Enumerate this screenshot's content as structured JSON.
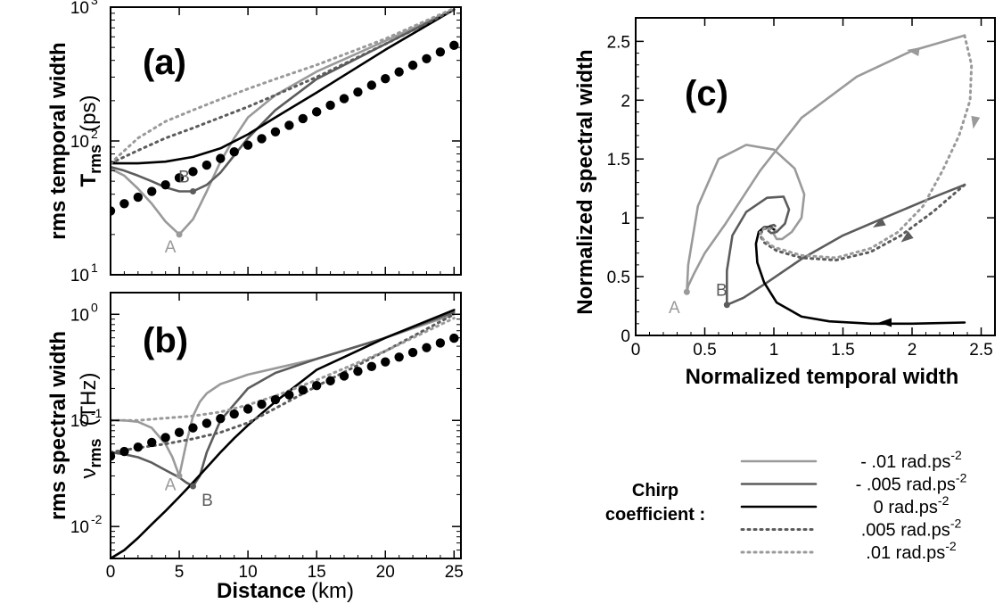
{
  "figure": {
    "panels": [
      {
        "id": "a",
        "label": "(a)",
        "ylabel_main": "rms temporal width",
        "ylabel_sym": "T",
        "ylabel_sub": "rms",
        "ylabel_unit": "(ps)",
        "y_ticks": [
          {
            "base": "10",
            "exp": "1"
          },
          {
            "base": "10",
            "exp": "2"
          },
          {
            "base": "10",
            "exp": "3"
          }
        ],
        "x_ticks": [
          "0",
          "5",
          "10",
          "15",
          "20",
          "25"
        ],
        "markers": [
          {
            "name": "A",
            "x": 5,
            "y": 20
          },
          {
            "name": "B",
            "x": 6,
            "y": 42
          }
        ]
      },
      {
        "id": "b",
        "label": "(b)",
        "ylabel_main": "rms spectral width",
        "ylabel_sym": "ν",
        "ylabel_sub": "rms",
        "ylabel_unit": "(THz)",
        "y_ticks": [
          {
            "base": "10",
            "exp": "-2"
          },
          {
            "base": "10",
            "exp": "-1"
          },
          {
            "base": "10",
            "exp": "0"
          }
        ],
        "x_ticks": [
          "0",
          "5",
          "10",
          "15",
          "20",
          "25"
        ],
        "xlabel_bold": "Distance",
        "xlabel_unit": "(km)",
        "markers": [
          {
            "name": "A",
            "x": 5,
            "y": 0.03
          },
          {
            "name": "B",
            "x": 6,
            "y": 0.024
          }
        ]
      },
      {
        "id": "c",
        "label": "(c)",
        "xlabel": "Normalized temporal width",
        "ylabel": "Normalized spectral width",
        "x_ticks": [
          "0",
          "0.5",
          "1",
          "1.5",
          "2",
          "2.5"
        ],
        "y_ticks": [
          "0",
          "0.5",
          "1",
          "1.5",
          "2",
          "2.5"
        ],
        "markers": [
          {
            "name": "A",
            "x": 0.37,
            "y": 0.37
          },
          {
            "name": "B",
            "x": 0.66,
            "y": 0.26
          }
        ]
      }
    ]
  },
  "legend": {
    "title_line1": "Chirp",
    "title_line2": "coefficient :",
    "entries": [
      {
        "text": "- .01 rad.ps",
        "sup": "-2",
        "color": "#9a9a9a",
        "dash": "solid"
      },
      {
        "text": "- .005 rad.ps",
        "sup": "-2",
        "color": "#5c5c5c",
        "dash": "solid"
      },
      {
        "text": "0 rad.ps",
        "sup": "-2",
        "color": "#000000",
        "dash": "solid"
      },
      {
        "text": ".005 rad.ps",
        "sup": "-2",
        "color": "#5c5c5c",
        "dash": "dotted"
      },
      {
        "text": ".01 rad.ps",
        "sup": "-2",
        "color": "#9a9a9a",
        "dash": "dotted"
      }
    ]
  },
  "chart_data": [
    {
      "type": "line",
      "title": "(a)",
      "xlabel": "",
      "ylabel": "rms temporal width T_rms (ps)",
      "xlim": [
        0,
        25.5
      ],
      "ylim": [
        10,
        1000
      ],
      "y_scale": "log",
      "series": [
        {
          "color": "#9a9a9a",
          "dash": "solid",
          "x": [
            0,
            1,
            2,
            3,
            4,
            5,
            6,
            7,
            8,
            9,
            10,
            12,
            15,
            20,
            25
          ],
          "y": [
            62,
            55,
            44,
            34,
            25,
            20,
            26,
            42,
            70,
            105,
            150,
            220,
            330,
            560,
            960
          ]
        },
        {
          "color": "#5c5c5c",
          "dash": "solid",
          "x": [
            0,
            1,
            2,
            3,
            4,
            5,
            6,
            7,
            8,
            9,
            10,
            12,
            15,
            20,
            25
          ],
          "y": [
            64,
            60,
            55,
            50,
            45,
            42,
            42,
            47,
            58,
            78,
            105,
            170,
            290,
            530,
            960
          ]
        },
        {
          "color": "#000000",
          "dash": "solid",
          "x": [
            0,
            2,
            4,
            6,
            8,
            10,
            12,
            15,
            20,
            25
          ],
          "y": [
            68,
            68,
            70,
            76,
            88,
            112,
            150,
            230,
            480,
            960
          ]
        },
        {
          "color": "#5c5c5c",
          "dash": "dotted",
          "x": [
            0,
            2,
            4,
            6,
            8,
            10,
            12,
            15,
            20,
            25
          ],
          "y": [
            68,
            85,
            105,
            125,
            150,
            180,
            220,
            300,
            530,
            960
          ]
        },
        {
          "color": "#9a9a9a",
          "dash": "dotted",
          "x": [
            0,
            2,
            4,
            6,
            8,
            10,
            12,
            15,
            20,
            25
          ],
          "y": [
            68,
            105,
            140,
            170,
            205,
            245,
            290,
            370,
            580,
            980
          ]
        },
        {
          "color": "#000000",
          "dash": "dots-large",
          "x": [
            0,
            1,
            2,
            3,
            4,
            5,
            6,
            7,
            8,
            9,
            10,
            11,
            12,
            13,
            14,
            15,
            16,
            17,
            18,
            19,
            20,
            21,
            22,
            23,
            24,
            25
          ],
          "y": [
            30,
            34,
            38,
            42,
            47,
            53,
            59,
            66,
            74,
            83,
            93,
            104,
            117,
            131,
            147,
            165,
            185,
            207,
            232,
            261,
            292,
            328,
            368,
            412,
            462,
            518
          ]
        }
      ]
    },
    {
      "type": "line",
      "title": "(b)",
      "xlabel": "Distance (km)",
      "ylabel": "rms spectral width ν_rms (THz)",
      "xlim": [
        0,
        25.5
      ],
      "ylim": [
        0.005,
        1.6
      ],
      "y_scale": "log",
      "series": [
        {
          "color": "#9a9a9a",
          "dash": "solid",
          "x": [
            0,
            1,
            2,
            3,
            4,
            4.5,
            5,
            5.5,
            6,
            6.5,
            7,
            8,
            10,
            12,
            15,
            20,
            25
          ],
          "y": [
            0.1,
            0.1,
            0.097,
            0.085,
            0.06,
            0.045,
            0.03,
            0.06,
            0.11,
            0.15,
            0.18,
            0.22,
            0.27,
            0.31,
            0.38,
            0.6,
            1.0
          ]
        },
        {
          "color": "#5c5c5c",
          "dash": "solid",
          "x": [
            0,
            1,
            2,
            3,
            4,
            5,
            5.5,
            6,
            6.5,
            7,
            8,
            10,
            12,
            15,
            20,
            25
          ],
          "y": [
            0.05,
            0.048,
            0.045,
            0.04,
            0.034,
            0.029,
            0.026,
            0.024,
            0.03,
            0.05,
            0.1,
            0.2,
            0.28,
            0.38,
            0.6,
            1.05
          ]
        },
        {
          "color": "#000000",
          "dash": "solid",
          "x": [
            0,
            1,
            2,
            3,
            4,
            5,
            6,
            7,
            8,
            9,
            10,
            12,
            15,
            20,
            25
          ],
          "y": [
            0.005,
            0.006,
            0.0078,
            0.0105,
            0.014,
            0.019,
            0.026,
            0.036,
            0.05,
            0.068,
            0.09,
            0.15,
            0.3,
            0.6,
            1.1
          ]
        },
        {
          "color": "#5c5c5c",
          "dash": "dotted",
          "x": [
            0,
            2,
            4,
            6,
            8,
            10,
            12,
            15,
            20,
            25
          ],
          "y": [
            0.05,
            0.055,
            0.06,
            0.067,
            0.077,
            0.095,
            0.13,
            0.21,
            0.45,
            1.0
          ]
        },
        {
          "color": "#9a9a9a",
          "dash": "dotted",
          "x": [
            0,
            2,
            4,
            6,
            8,
            10,
            12,
            15,
            20,
            25
          ],
          "y": [
            0.1,
            0.1,
            0.105,
            0.11,
            0.12,
            0.14,
            0.17,
            0.24,
            0.45,
            0.92
          ]
        },
        {
          "color": "#000000",
          "dash": "dots-large",
          "x": [
            0,
            1,
            2,
            3,
            4,
            5,
            6,
            7,
            8,
            9,
            10,
            11,
            12,
            13,
            14,
            15,
            16,
            17,
            18,
            19,
            20,
            21,
            22,
            23,
            24,
            25
          ],
          "y": [
            0.046,
            0.051,
            0.056,
            0.062,
            0.069,
            0.077,
            0.085,
            0.094,
            0.104,
            0.115,
            0.128,
            0.142,
            0.157,
            0.174,
            0.193,
            0.213,
            0.236,
            0.262,
            0.29,
            0.322,
            0.356,
            0.395,
            0.437,
            0.485,
            0.537,
            0.595
          ]
        }
      ]
    },
    {
      "type": "line",
      "title": "(c)",
      "xlabel": "Normalized temporal width",
      "ylabel": "Normalized spectral width",
      "xlim": [
        0,
        2.6
      ],
      "ylim": [
        0,
        2.7
      ],
      "series": [
        {
          "color": "#9a9a9a",
          "dash": "solid",
          "x": [
            2.38,
            2.0,
            1.6,
            1.2,
            0.9,
            0.65,
            0.5,
            0.42,
            0.38,
            0.37,
            0.38,
            0.45,
            0.6,
            0.8,
            1.0,
            1.15,
            1.22,
            1.2,
            1.13,
            1.06,
            1.02,
            1.0,
            1.01
          ],
          "y": [
            2.55,
            2.42,
            2.2,
            1.85,
            1.4,
            0.95,
            0.7,
            0.52,
            0.42,
            0.37,
            0.6,
            1.1,
            1.5,
            1.62,
            1.58,
            1.42,
            1.2,
            1.0,
            0.88,
            0.82,
            0.82,
            0.86,
            0.9
          ]
        },
        {
          "color": "#5c5c5c",
          "dash": "solid",
          "x": [
            2.38,
            2.1,
            1.8,
            1.5,
            1.2,
            0.95,
            0.78,
            0.68,
            0.66,
            0.66,
            0.7,
            0.8,
            0.95,
            1.07,
            1.11,
            1.08,
            1.02,
            0.98,
            0.96,
            0.97,
            1.0,
            1.01
          ],
          "y": [
            1.28,
            1.15,
            1.0,
            0.85,
            0.65,
            0.45,
            0.32,
            0.27,
            0.26,
            0.55,
            0.85,
            1.05,
            1.17,
            1.18,
            1.07,
            0.95,
            0.88,
            0.87,
            0.89,
            0.93,
            0.94,
            0.93
          ]
        },
        {
          "color": "#000000",
          "dash": "solid",
          "x": [
            2.38,
            2.0,
            1.7,
            1.4,
            1.2,
            1.02,
            0.93,
            0.88,
            0.87,
            0.89,
            0.93,
            0.98,
            1.0
          ],
          "y": [
            0.11,
            0.1,
            0.1,
            0.12,
            0.16,
            0.28,
            0.45,
            0.62,
            0.78,
            0.88,
            0.92,
            0.92,
            0.9
          ]
        },
        {
          "color": "#5c5c5c",
          "dash": "dotted",
          "x": [
            2.38,
            2.15,
            1.92,
            1.7,
            1.45,
            1.2,
            1.02,
            0.93,
            0.9,
            0.92,
            0.96,
            1.0
          ],
          "y": [
            1.28,
            1.05,
            0.85,
            0.71,
            0.64,
            0.66,
            0.72,
            0.79,
            0.85,
            0.9,
            0.92,
            0.91
          ]
        },
        {
          "color": "#9a9a9a",
          "dash": "dotted",
          "x": [
            2.38,
            2.43,
            2.42,
            2.34,
            2.22,
            2.08,
            1.9,
            1.7,
            1.45,
            1.2,
            1.0,
            0.92,
            0.9,
            0.94,
            0.98
          ],
          "y": [
            2.55,
            2.3,
            2.0,
            1.7,
            1.4,
            1.1,
            0.88,
            0.74,
            0.66,
            0.68,
            0.75,
            0.82,
            0.88,
            0.92,
            0.9
          ]
        }
      ]
    }
  ]
}
